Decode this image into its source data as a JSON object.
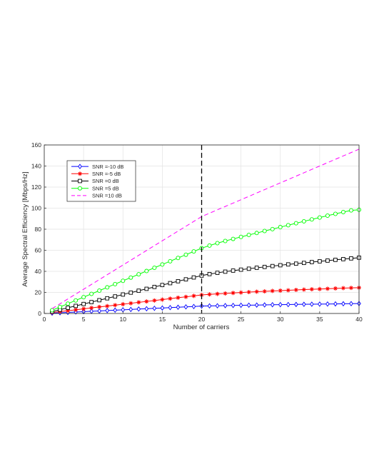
{
  "chart_data": {
    "type": "line",
    "xlabel": "Number of carriers",
    "ylabel": "Average Spectral Efficiency [Mbps/Hz]",
    "xlim": [
      0,
      40
    ],
    "ylim": [
      0,
      160
    ],
    "x_ticks": [
      0,
      5,
      10,
      15,
      20,
      25,
      30,
      35,
      40
    ],
    "y_ticks": [
      0,
      20,
      40,
      60,
      80,
      100,
      120,
      140,
      160
    ],
    "grid": true,
    "legend_position": "top-left",
    "vertical_marker": {
      "x": 20,
      "style": "dashed",
      "color": "#000000"
    },
    "x": [
      1,
      2,
      3,
      4,
      5,
      6,
      7,
      8,
      9,
      10,
      11,
      12,
      13,
      14,
      15,
      16,
      17,
      18,
      19,
      20,
      21,
      22,
      23,
      24,
      25,
      26,
      27,
      28,
      29,
      30,
      31,
      32,
      33,
      34,
      35,
      36,
      37,
      38,
      39,
      40
    ],
    "series": [
      {
        "name": "SNR =-10 dB",
        "color": "#0000ff",
        "marker": "diamond",
        "line": "solid",
        "values": [
          0.3,
          0.7,
          1.0,
          1.4,
          1.7,
          2.1,
          2.4,
          2.8,
          3.1,
          3.5,
          3.8,
          4.2,
          4.5,
          4.9,
          5.2,
          5.6,
          5.9,
          6.3,
          6.6,
          7.0,
          7.2,
          7.3,
          7.5,
          7.6,
          7.8,
          7.9,
          8.0,
          8.1,
          8.3,
          8.4,
          8.5,
          8.6,
          8.7,
          8.8,
          8.9,
          9.0,
          9.1,
          9.2,
          9.3,
          9.4
        ]
      },
      {
        "name": "SNR =-5 dB",
        "color": "#ff0000",
        "marker": "asterisk",
        "line": "solid",
        "values": [
          0.9,
          1.8,
          2.6,
          3.5,
          4.4,
          5.3,
          6.2,
          7.0,
          7.9,
          8.8,
          9.7,
          10.6,
          11.4,
          12.3,
          13.2,
          14.1,
          15.0,
          15.8,
          16.7,
          17.6,
          18.1,
          18.6,
          19.0,
          19.5,
          19.9,
          20.3,
          20.7,
          21.0,
          21.4,
          21.7,
          22.0,
          22.4,
          22.7,
          23.0,
          23.2,
          23.5,
          23.8,
          24.1,
          24.3,
          24.5
        ]
      },
      {
        "name": "SNR =0 dB",
        "color": "#000000",
        "marker": "square",
        "line": "solid",
        "values": [
          1.8,
          3.6,
          5.4,
          7.2,
          9.0,
          10.8,
          12.6,
          14.4,
          16.2,
          18.0,
          19.8,
          21.6,
          23.4,
          25.2,
          27.0,
          28.8,
          30.6,
          32.4,
          34.2,
          36.0,
          37.4,
          38.6,
          39.7,
          40.7,
          41.6,
          42.5,
          43.4,
          44.2,
          45.0,
          45.8,
          46.6,
          47.3,
          48.0,
          48.8,
          49.5,
          50.2,
          50.9,
          51.6,
          52.3,
          53.0
        ]
      },
      {
        "name": "SNR =5 dB",
        "color": "#00ff00",
        "marker": "circle",
        "line": "solid",
        "values": [
          3.1,
          6.2,
          9.3,
          12.4,
          15.5,
          18.6,
          21.7,
          24.8,
          27.9,
          31.0,
          34.1,
          37.2,
          40.3,
          43.4,
          46.5,
          49.6,
          52.7,
          55.8,
          58.9,
          62.0,
          64.5,
          66.8,
          68.8,
          70.8,
          72.7,
          74.6,
          76.4,
          78.3,
          80.1,
          82.0,
          83.8,
          85.7,
          87.5,
          89.3,
          91.1,
          92.9,
          94.6,
          96.3,
          97.9,
          98.5
        ]
      },
      {
        "name": "SNR =10 dB",
        "color": "#ff00ff",
        "marker": "none",
        "line": "dashed",
        "values": [
          4.6,
          9.2,
          13.8,
          18.4,
          23.0,
          27.6,
          32.2,
          36.8,
          41.4,
          46.0,
          50.6,
          55.2,
          59.8,
          64.4,
          69.0,
          73.6,
          78.2,
          82.8,
          87.4,
          92.0,
          95.2,
          98.4,
          101.6,
          104.8,
          108.0,
          111.2,
          114.4,
          117.6,
          120.8,
          124.0,
          127.2,
          130.4,
          133.6,
          136.8,
          140.0,
          143.2,
          146.4,
          149.6,
          152.8,
          156.0
        ]
      }
    ]
  }
}
